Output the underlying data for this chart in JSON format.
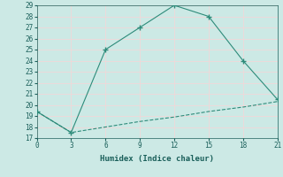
{
  "line1_x": [
    0,
    3,
    6,
    9,
    12,
    15,
    18,
    21
  ],
  "line1_y": [
    19.4,
    17.5,
    25.0,
    27.0,
    29.0,
    28.0,
    24.0,
    20.5
  ],
  "line2_x": [
    0,
    3,
    6,
    9,
    12,
    15,
    18,
    21
  ],
  "line2_y": [
    19.4,
    17.5,
    18.0,
    18.5,
    18.9,
    19.4,
    19.8,
    20.3
  ],
  "line_color": "#2e8b7a",
  "bg_color": "#cce9e5",
  "grid_color": "#f0d8d8",
  "xlabel": "Humidex (Indice chaleur)",
  "xlim": [
    0,
    21
  ],
  "ylim": [
    17,
    29
  ],
  "xticks": [
    0,
    3,
    6,
    9,
    12,
    15,
    18,
    21
  ],
  "yticks": [
    17,
    18,
    19,
    20,
    21,
    22,
    23,
    24,
    25,
    26,
    27,
    28,
    29
  ]
}
